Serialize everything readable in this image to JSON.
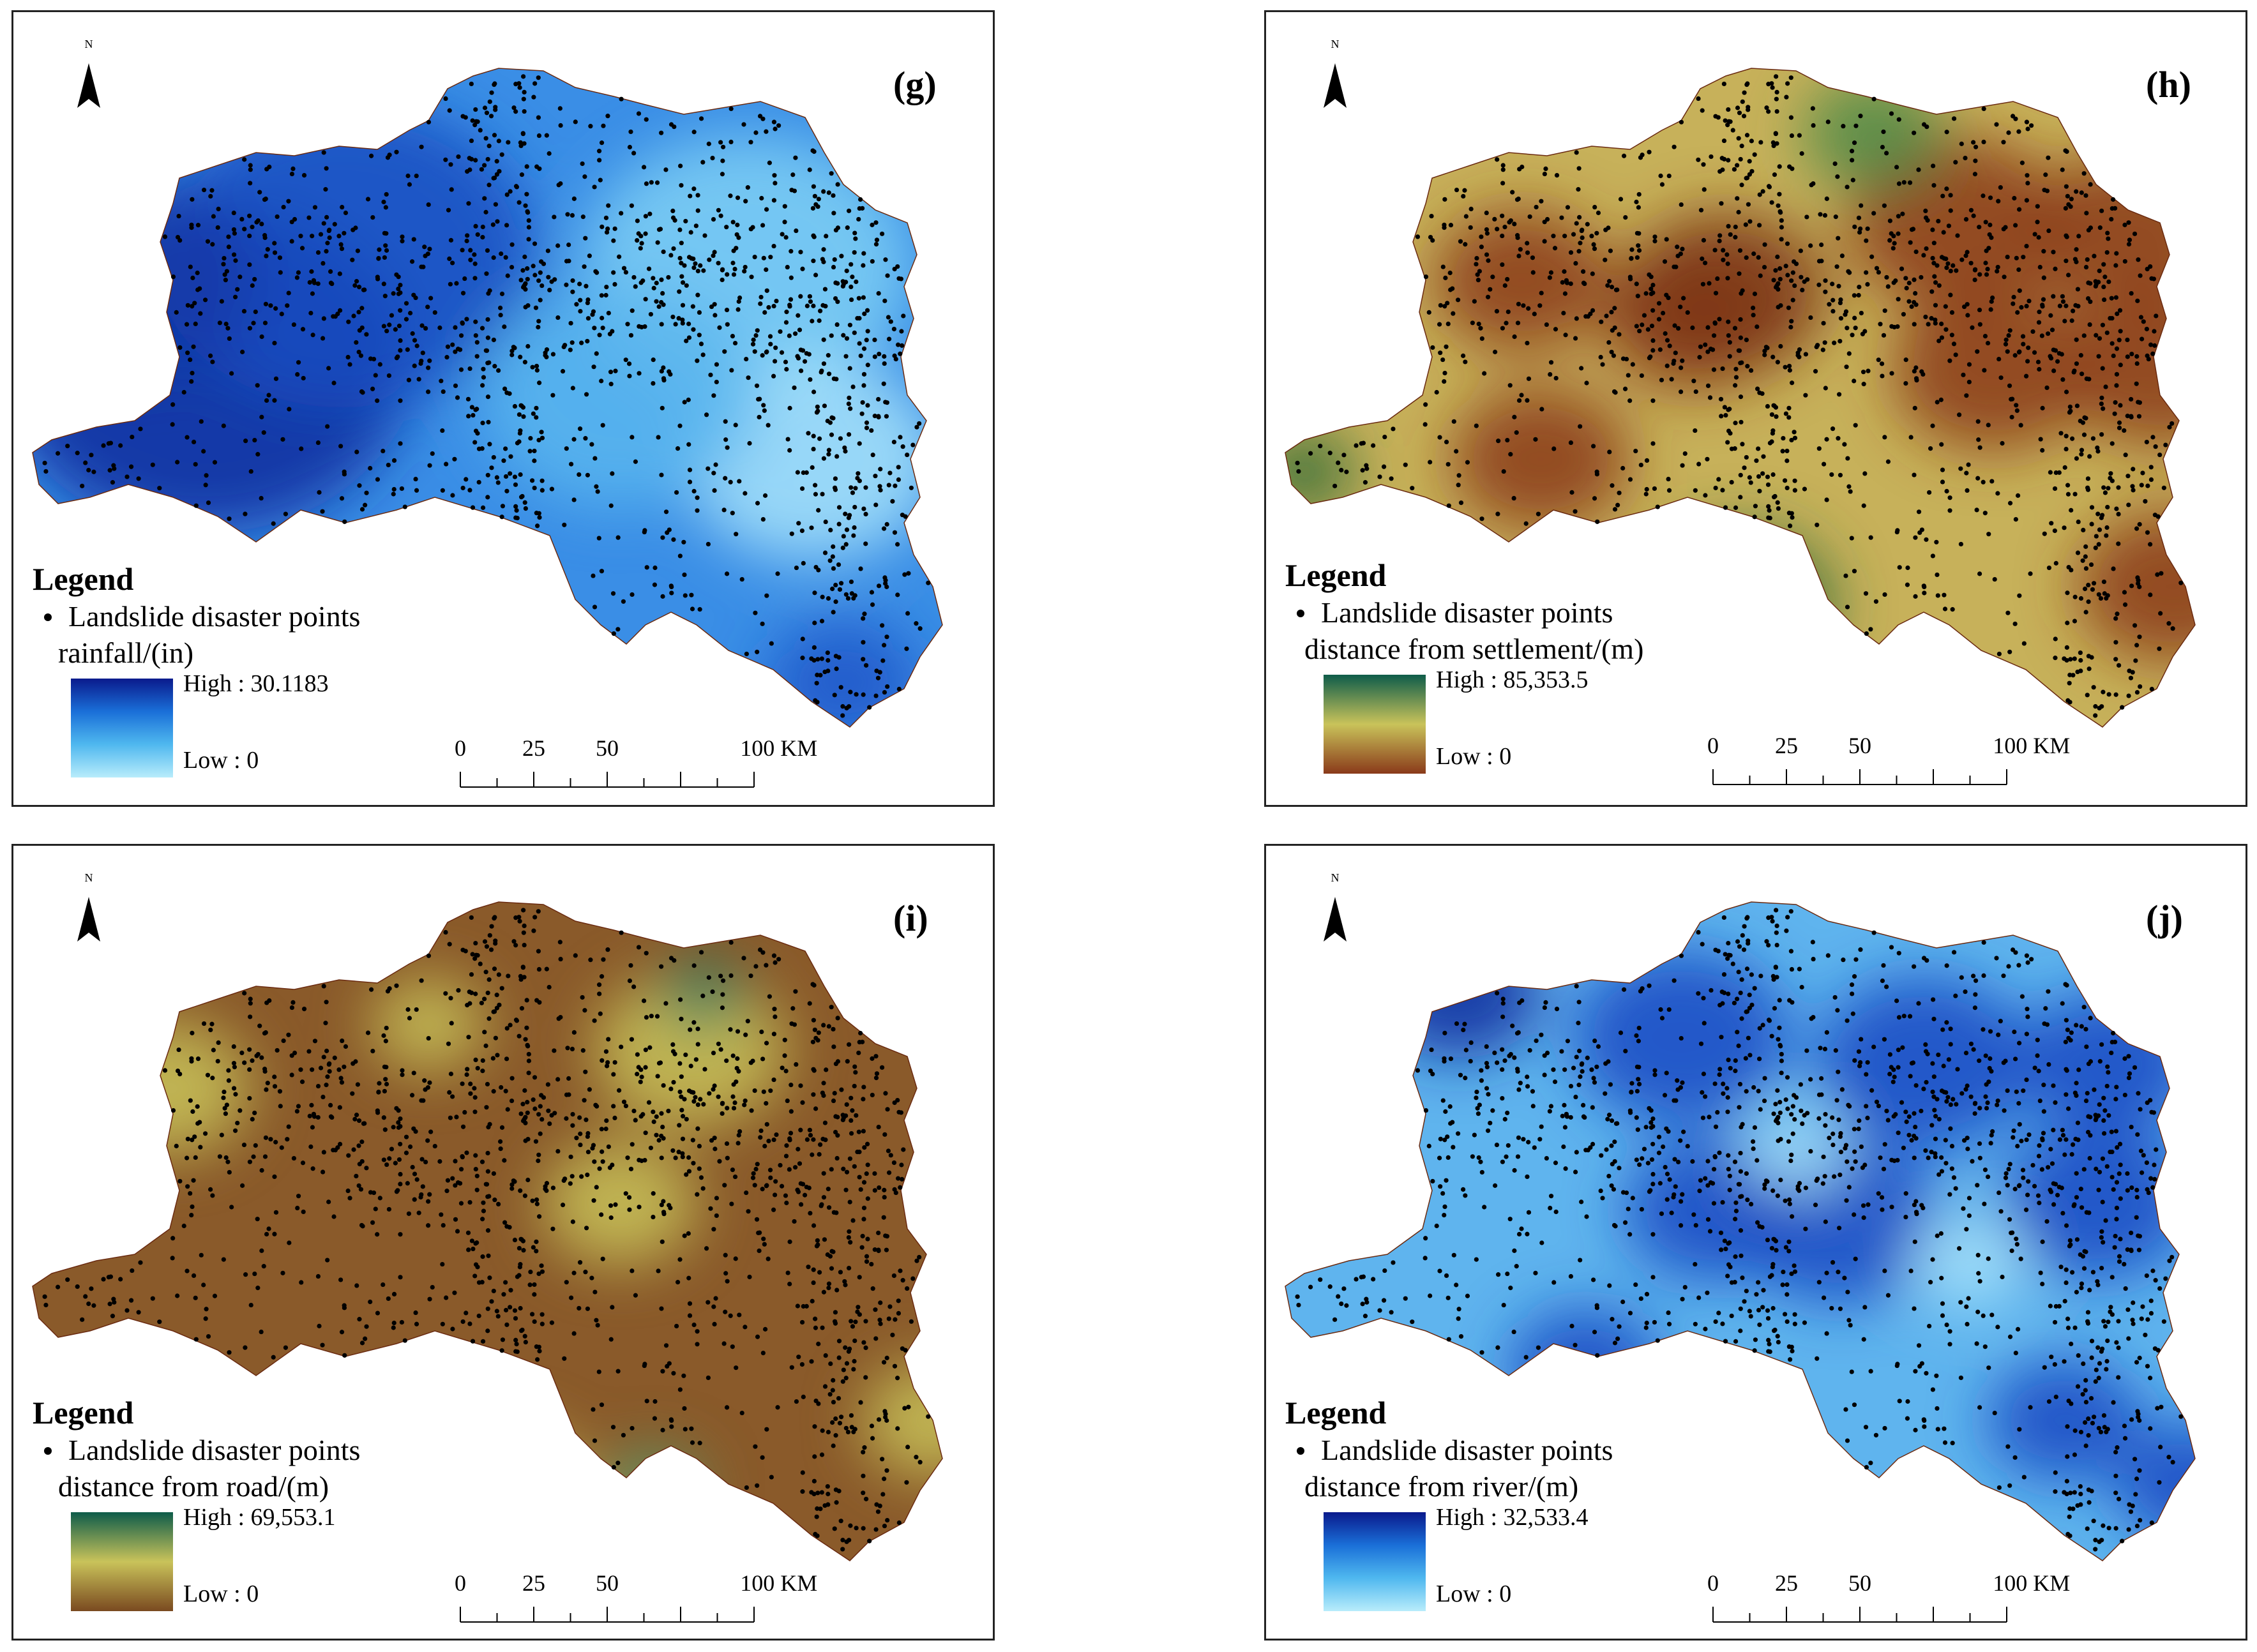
{
  "panels": [
    {
      "label": "(g)",
      "north": "N",
      "legend_title": "Legend",
      "points_label": "Landslide disaster points",
      "variable_label": "rainfall/(in)",
      "high_label": "High : 30.1183",
      "low_label": "Low : 0",
      "ramp_colors": [
        "#0a1a8c",
        "#1a6fd8",
        "#4fb8ef",
        "#b8ecfb"
      ],
      "scale_labels": [
        "0",
        "25",
        "50",
        "100 KM"
      ],
      "scale_values": [
        0,
        25,
        50,
        100
      ],
      "theme": "rainfall"
    },
    {
      "label": "(h)",
      "north": "N",
      "legend_title": "Legend",
      "points_label": "Landslide disaster points",
      "variable_label": "distance from settlement/(m)",
      "high_label": "High : 85,353.5",
      "low_label": "Low : 0",
      "ramp_colors": [
        "#0e5c4a",
        "#c9c35a",
        "#8a3a1a"
      ],
      "scale_labels": [
        "0",
        "25",
        "50",
        "100 KM"
      ],
      "scale_values": [
        0,
        25,
        50,
        100
      ],
      "theme": "settlement"
    },
    {
      "label": "(i)",
      "north": "N",
      "legend_title": "Legend",
      "points_label": "Landslide disaster points",
      "variable_label": "distance from road/(m)",
      "high_label": "High : 69,553.1",
      "low_label": "Low : 0",
      "ramp_colors": [
        "#0e5c4a",
        "#c9c35a",
        "#7a4a20"
      ],
      "scale_labels": [
        "0",
        "25",
        "50",
        "100 KM"
      ],
      "scale_values": [
        0,
        25,
        50,
        100
      ],
      "theme": "road"
    },
    {
      "label": "(j)",
      "north": "N",
      "legend_title": "Legend",
      "points_label": "Landslide disaster points",
      "variable_label": "distance from river/(m)",
      "high_label": "High : 32,533.4",
      "low_label": "Low : 0",
      "ramp_colors": [
        "#0a1a8c",
        "#1a6fd8",
        "#4fb8ef",
        "#b8ecfb"
      ],
      "scale_labels": [
        "0",
        "25",
        "50",
        "100 KM"
      ],
      "scale_values": [
        0,
        25,
        50,
        100
      ],
      "theme": "river"
    }
  ]
}
